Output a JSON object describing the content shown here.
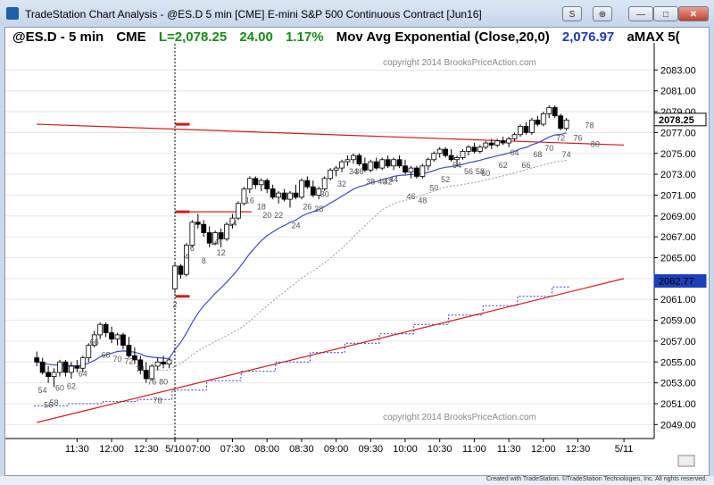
{
  "window": {
    "title": "TradeStation Chart Analysis - @ES.D 5 min [CME] E-mini S&P 500 Continuous Contract [Jun16]",
    "buttons": [
      "S",
      "⊕"
    ]
  },
  "header": {
    "symbol": "@ES.D - 5 min",
    "exchange": "CME",
    "last": "L=2,078.25",
    "change": "24.00",
    "pct": "1.17%",
    "study": "Mov Avg Exponential (Close,20,0)",
    "study_value": "2,076.97",
    "extra": "aMAX 5("
  },
  "colors": {
    "up": "#ffffff",
    "down": "#000000",
    "ema": "#3a4fc4",
    "trend": "#cc1f1f",
    "marker": "#cc1f1f",
    "band": "#999999",
    "dotted_blue": "#2f3fd0"
  },
  "status": "Created with TradeStation. ©TradeStation Technologies, Inc. All rights reserved.",
  "chart_data": {
    "type": "candlestick",
    "title": "@ES.D - 5 min CME",
    "ylim": [
      2048,
      2085
    ],
    "y_ticks": [
      "2083.00",
      "2081.00",
      "2079.00",
      "2077.00",
      "2075.00",
      "2073.00",
      "2071.00",
      "2069.00",
      "2067.00",
      "2065.00",
      "2063.00",
      "2061.00",
      "2059.00",
      "2057.00",
      "2055.00",
      "2053.00",
      "2051.00",
      "2049.00"
    ],
    "x_ticks": [
      {
        "label": "11:30",
        "bar": -17
      },
      {
        "label": "12:00",
        "bar": -11
      },
      {
        "label": "12:30",
        "bar": -5
      },
      {
        "label": "5/10",
        "bar": 0
      },
      {
        "label": "07:00",
        "bar": 4
      },
      {
        "label": "07:30",
        "bar": 10
      },
      {
        "label": "08:00",
        "bar": 16
      },
      {
        "label": "08:30",
        "bar": 22
      },
      {
        "label": "09:00",
        "bar": 28
      },
      {
        "label": "09:30",
        "bar": 34
      },
      {
        "label": "10:00",
        "bar": 40
      },
      {
        "label": "10:30",
        "bar": 46
      },
      {
        "label": "11:00",
        "bar": 52
      },
      {
        "label": "11:30",
        "bar": 58
      },
      {
        "label": "12:00",
        "bar": 64
      },
      {
        "label": "12:30",
        "bar": 70
      },
      {
        "label": "5/11",
        "bar": 78
      }
    ],
    "ohlc_prev": [
      [
        2055.4,
        2056.0,
        2054.6,
        2055.0
      ],
      [
        2055.0,
        2055.4,
        2053.8,
        2054.0
      ],
      [
        2054.0,
        2054.6,
        2053.0,
        2053.6
      ],
      [
        2053.6,
        2054.4,
        2052.6,
        2054.0
      ],
      [
        2054.0,
        2055.2,
        2053.6,
        2055.0
      ],
      [
        2055.0,
        2055.2,
        2053.6,
        2054.0
      ],
      [
        2054.0,
        2055.0,
        2053.4,
        2054.6
      ],
      [
        2054.6,
        2055.2,
        2054.0,
        2054.4
      ],
      [
        2054.4,
        2055.6,
        2054.0,
        2055.4
      ],
      [
        2055.4,
        2056.8,
        2055.0,
        2056.6
      ],
      [
        2056.6,
        2058.0,
        2056.4,
        2057.6
      ],
      [
        2057.6,
        2058.8,
        2057.2,
        2058.6
      ],
      [
        2058.6,
        2058.8,
        2057.4,
        2057.8
      ],
      [
        2057.8,
        2058.4,
        2056.8,
        2057.2
      ],
      [
        2057.2,
        2057.8,
        2056.6,
        2057.6
      ],
      [
        2057.6,
        2057.8,
        2056.2,
        2056.6
      ],
      [
        2056.6,
        2057.4,
        2055.4,
        2055.6
      ],
      [
        2055.6,
        2056.4,
        2054.8,
        2055.2
      ],
      [
        2055.2,
        2055.6,
        2053.8,
        2054.2
      ],
      [
        2054.2,
        2055.0,
        2053.0,
        2053.4
      ],
      [
        2053.4,
        2054.8,
        2053.2,
        2054.6
      ],
      [
        2054.6,
        2055.4,
        2054.2,
        2055.0
      ],
      [
        2055.0,
        2055.6,
        2054.4,
        2054.8
      ],
      [
        2054.8,
        2055.4,
        2054.4,
        2055.2
      ]
    ],
    "ohlc_day": [
      [
        2062.0,
        2064.6,
        2061.6,
        2064.2
      ],
      [
        2064.2,
        2064.4,
        2063.0,
        2063.4
      ],
      [
        2063.4,
        2066.4,
        2063.2,
        2066.2
      ],
      [
        2066.2,
        2068.6,
        2066.0,
        2068.4
      ],
      [
        2068.4,
        2069.2,
        2067.8,
        2068.2
      ],
      [
        2068.2,
        2068.6,
        2067.0,
        2067.4
      ],
      [
        2067.4,
        2068.0,
        2066.0,
        2066.4
      ],
      [
        2066.4,
        2067.6,
        2066.2,
        2067.4
      ],
      [
        2067.4,
        2067.8,
        2066.0,
        2066.8
      ],
      [
        2066.8,
        2068.4,
        2066.6,
        2068.2
      ],
      [
        2068.2,
        2069.2,
        2067.8,
        2068.8
      ],
      [
        2068.8,
        2070.4,
        2068.6,
        2070.2
      ],
      [
        2070.2,
        2071.8,
        2070.0,
        2071.6
      ],
      [
        2071.6,
        2072.8,
        2071.2,
        2072.6
      ],
      [
        2072.6,
        2072.8,
        2071.6,
        2072.0
      ],
      [
        2072.0,
        2072.6,
        2071.4,
        2072.4
      ],
      [
        2072.4,
        2072.6,
        2071.2,
        2071.6
      ],
      [
        2071.6,
        2072.0,
        2070.6,
        2070.8
      ],
      [
        2070.8,
        2071.4,
        2070.2,
        2071.2
      ],
      [
        2071.2,
        2071.6,
        2070.4,
        2070.6
      ],
      [
        2070.6,
        2071.4,
        2069.8,
        2071.2
      ],
      [
        2071.2,
        2072.0,
        2070.6,
        2070.8
      ],
      [
        2070.8,
        2072.6,
        2070.6,
        2072.4
      ],
      [
        2072.4,
        2072.8,
        2071.6,
        2071.8
      ],
      [
        2071.8,
        2072.4,
        2070.8,
        2071.0
      ],
      [
        2071.0,
        2071.8,
        2070.6,
        2071.6
      ],
      [
        2071.6,
        2072.8,
        2071.4,
        2072.6
      ],
      [
        2072.6,
        2073.6,
        2072.4,
        2073.4
      ],
      [
        2073.4,
        2073.8,
        2072.8,
        2073.6
      ],
      [
        2073.6,
        2074.4,
        2073.2,
        2074.2
      ],
      [
        2074.2,
        2074.8,
        2073.8,
        2074.4
      ],
      [
        2074.4,
        2075.0,
        2074.0,
        2074.8
      ],
      [
        2074.8,
        2075.0,
        2073.8,
        2074.0
      ],
      [
        2074.0,
        2074.6,
        2073.2,
        2073.4
      ],
      [
        2073.4,
        2074.4,
        2073.2,
        2074.2
      ],
      [
        2074.2,
        2074.6,
        2073.4,
        2073.6
      ],
      [
        2073.6,
        2074.6,
        2073.4,
        2074.4
      ],
      [
        2074.4,
        2074.8,
        2073.6,
        2073.8
      ],
      [
        2073.8,
        2074.6,
        2073.4,
        2074.4
      ],
      [
        2074.4,
        2074.8,
        2073.6,
        2073.8
      ],
      [
        2073.8,
        2074.4,
        2073.0,
        2073.2
      ],
      [
        2073.2,
        2073.8,
        2072.6,
        2073.6
      ],
      [
        2073.6,
        2073.8,
        2072.6,
        2072.8
      ],
      [
        2072.8,
        2074.0,
        2072.6,
        2073.8
      ],
      [
        2073.8,
        2074.6,
        2073.4,
        2074.4
      ],
      [
        2074.4,
        2075.2,
        2074.2,
        2075.0
      ],
      [
        2075.0,
        2075.6,
        2074.6,
        2075.4
      ],
      [
        2075.4,
        2075.6,
        2074.6,
        2074.8
      ],
      [
        2074.8,
        2075.4,
        2074.2,
        2074.4
      ],
      [
        2074.4,
        2074.8,
        2073.8,
        2074.6
      ],
      [
        2074.6,
        2075.4,
        2074.4,
        2075.2
      ],
      [
        2075.2,
        2075.8,
        2074.8,
        2075.6
      ],
      [
        2075.6,
        2076.0,
        2075.0,
        2075.2
      ],
      [
        2075.2,
        2075.8,
        2075.0,
        2075.6
      ],
      [
        2075.6,
        2076.2,
        2075.4,
        2076.0
      ],
      [
        2076.0,
        2076.4,
        2075.4,
        2075.8
      ],
      [
        2075.8,
        2076.4,
        2075.6,
        2076.2
      ],
      [
        2076.2,
        2076.6,
        2075.8,
        2076.0
      ],
      [
        2076.0,
        2076.6,
        2075.6,
        2076.4
      ],
      [
        2076.4,
        2077.0,
        2076.2,
        2076.8
      ],
      [
        2076.8,
        2077.8,
        2076.6,
        2077.6
      ],
      [
        2077.6,
        2078.0,
        2076.8,
        2077.0
      ],
      [
        2077.0,
        2078.4,
        2076.8,
        2078.2
      ],
      [
        2078.2,
        2078.6,
        2077.6,
        2077.8
      ],
      [
        2077.8,
        2079.0,
        2077.6,
        2078.8
      ],
      [
        2078.8,
        2079.6,
        2078.4,
        2079.4
      ],
      [
        2079.4,
        2079.6,
        2078.4,
        2078.6
      ],
      [
        2078.6,
        2078.8,
        2077.2,
        2077.4
      ],
      [
        2077.4,
        2078.4,
        2077.2,
        2078.2
      ]
    ],
    "bar_numbers": [
      {
        "text": "54",
        "bar": -23,
        "price": 2052.8
      },
      {
        "text": "56",
        "bar": -22,
        "price": 2051.4
      },
      {
        "text": "58",
        "bar": -21,
        "price": 2051.6
      },
      {
        "text": "60",
        "bar": -20,
        "price": 2053.0
      },
      {
        "text": "62",
        "bar": -18,
        "price": 2053.2
      },
      {
        "text": "64",
        "bar": -16,
        "price": 2054.4
      },
      {
        "text": "66",
        "bar": -14,
        "price": 2057.4
      },
      {
        "text": "68",
        "bar": -12,
        "price": 2056.2
      },
      {
        "text": "70",
        "bar": -10,
        "price": 2055.8
      },
      {
        "text": "72",
        "bar": -8,
        "price": 2055.6
      },
      {
        "text": "74",
        "bar": -6,
        "price": 2054.8
      },
      {
        "text": "76",
        "bar": -4,
        "price": 2053.6
      },
      {
        "text": "78",
        "bar": -3,
        "price": 2051.8
      },
      {
        "text": "80",
        "bar": -2,
        "price": 2053.6
      },
      {
        "text": "2",
        "bar": 0,
        "price": 2061.0
      },
      {
        "text": "4",
        "bar": 2,
        "price": 2065.6
      },
      {
        "text": "6",
        "bar": 3,
        "price": 2066.4
      },
      {
        "text": "8",
        "bar": 5,
        "price": 2065.2
      },
      {
        "text": "10",
        "bar": 7,
        "price": 2067.0
      },
      {
        "text": "12",
        "bar": 8,
        "price": 2066.0
      },
      {
        "text": "14",
        "bar": 10,
        "price": 2068.8
      },
      {
        "text": "16",
        "bar": 13,
        "price": 2071.0
      },
      {
        "text": "18",
        "bar": 15,
        "price": 2070.4
      },
      {
        "text": "20",
        "bar": 16,
        "price": 2069.6
      },
      {
        "text": "22",
        "bar": 18,
        "price": 2069.6
      },
      {
        "text": "24",
        "bar": 21,
        "price": 2068.6
      },
      {
        "text": "26",
        "bar": 23,
        "price": 2070.4
      },
      {
        "text": "28",
        "bar": 25,
        "price": 2070.2
      },
      {
        "text": "30",
        "bar": 26,
        "price": 2071.6
      },
      {
        "text": "32",
        "bar": 29,
        "price": 2072.6
      },
      {
        "text": "34",
        "bar": 31,
        "price": 2073.8
      },
      {
        "text": "36",
        "bar": 32,
        "price": 2073.8
      },
      {
        "text": "38",
        "bar": 34,
        "price": 2072.8
      },
      {
        "text": "40",
        "bar": 36,
        "price": 2072.8
      },
      {
        "text": "42",
        "bar": 37,
        "price": 2072.8
      },
      {
        "text": "44",
        "bar": 38,
        "price": 2073.0
      },
      {
        "text": "46",
        "bar": 41,
        "price": 2071.4
      },
      {
        "text": "48",
        "bar": 43,
        "price": 2071.0
      },
      {
        "text": "50",
        "bar": 45,
        "price": 2072.2
      },
      {
        "text": "52",
        "bar": 47,
        "price": 2073.0
      },
      {
        "text": "54",
        "bar": 49,
        "price": 2074.4
      },
      {
        "text": "56",
        "bar": 51,
        "price": 2073.8
      },
      {
        "text": "58",
        "bar": 53,
        "price": 2073.8
      },
      {
        "text": "60",
        "bar": 54,
        "price": 2073.6
      },
      {
        "text": "62",
        "bar": 57,
        "price": 2074.4
      },
      {
        "text": "64",
        "bar": 59,
        "price": 2075.6
      },
      {
        "text": "66",
        "bar": 61,
        "price": 2074.4
      },
      {
        "text": "68",
        "bar": 63,
        "price": 2075.4
      },
      {
        "text": "70",
        "bar": 65,
        "price": 2076.0
      },
      {
        "text": "72",
        "bar": 67,
        "price": 2077.0
      },
      {
        "text": "74",
        "bar": 68,
        "price": 2075.4
      },
      {
        "text": "76",
        "bar": 70,
        "price": 2077.0
      },
      {
        "text": "78",
        "bar": 72,
        "price": 2078.2
      },
      {
        "text": "80",
        "bar": 73,
        "price": 2076.4
      }
    ],
    "markers": [
      {
        "bar": 1,
        "price": 2077.8
      },
      {
        "bar": 1,
        "price": 2069.4
      },
      {
        "bar": 1,
        "price": 2061.3
      }
    ],
    "hline": {
      "from_bar": 1,
      "to_bar": 4,
      "price": 2069.4
    },
    "trend_lines": [
      {
        "bar1": -24,
        "price1": 2077.8,
        "bar2": 78,
        "price2": 2075.8
      },
      {
        "bar1": -24,
        "price1": 2049.2,
        "bar2": 78,
        "price2": 2063.0
      }
    ],
    "last_price": "2078.25",
    "last_price_value": 2078.25,
    "band_price": "2062.77",
    "band_price_value": 2062.77,
    "copyright": "copyright 2014 BrooksPriceAction.com"
  }
}
